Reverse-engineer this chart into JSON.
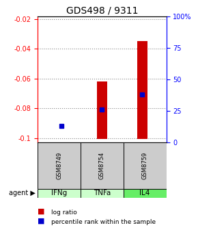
{
  "title": "GDS498 / 9311",
  "samples": [
    "GSM8749",
    "GSM8754",
    "GSM8759"
  ],
  "agents": [
    "IFNg",
    "TNFa",
    "IL4"
  ],
  "log_ratios": [
    -0.1005,
    -0.062,
    -0.035
  ],
  "percentile_ranks": [
    13,
    26,
    38
  ],
  "bar_bottom": -0.1005,
  "ylim_left": [
    -0.103,
    -0.018
  ],
  "ylim_right": [
    0,
    100
  ],
  "yticks_left": [
    -0.1,
    -0.08,
    -0.06,
    -0.04,
    -0.02
  ],
  "yticks_right": [
    0,
    25,
    50,
    75,
    100
  ],
  "ytick_labels_left": [
    "-0.1",
    "-0.08",
    "-0.06",
    "-0.04",
    "-0.02"
  ],
  "ytick_labels_right": [
    "0",
    "25",
    "50",
    "75",
    "100%"
  ],
  "bar_color": "#cc0000",
  "dot_color": "#0000cc",
  "sample_bg_color": "#cccccc",
  "agent_bg_colors": [
    "#ccffcc",
    "#ccffcc",
    "#66ee66"
  ],
  "grid_color": "#888888",
  "title_fontsize": 10,
  "tick_fontsize": 7,
  "bar_width": 0.25
}
